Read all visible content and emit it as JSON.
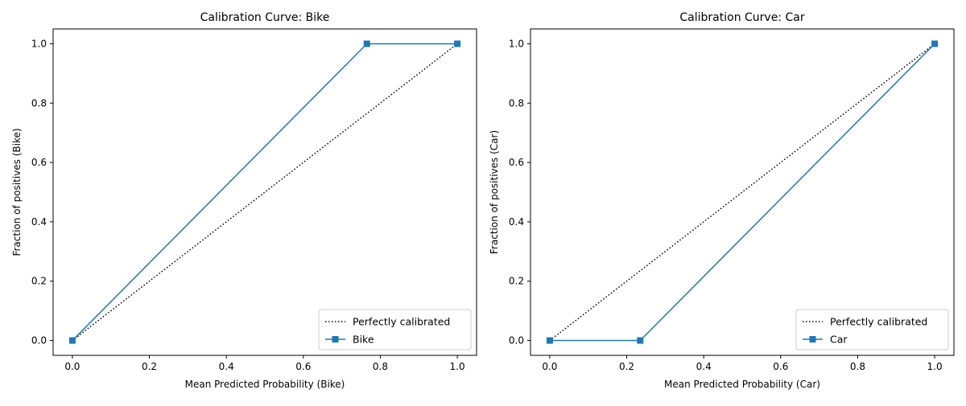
{
  "chart_data": [
    {
      "type": "line",
      "title": "Calibration Curve: Bike",
      "xlabel": "Mean Predicted Probability (Bike)",
      "ylabel": "Fraction of positives (Bike)",
      "xlim": [
        -0.05,
        1.05
      ],
      "ylim": [
        -0.05,
        1.05
      ],
      "xticks": [
        "0.0",
        "0.2",
        "0.4",
        "0.6",
        "0.8",
        "1.0"
      ],
      "yticks": [
        "0.0",
        "0.2",
        "0.4",
        "0.6",
        "0.8",
        "1.0"
      ],
      "legend_position": "lower-right",
      "series": [
        {
          "name": "Perfectly calibrated",
          "style": "dotted",
          "color": "#000000",
          "x": [
            0,
            1
          ],
          "y": [
            0,
            1
          ]
        },
        {
          "name": "Bike",
          "style": "solid-square-markers",
          "color": "#1f77b4",
          "x": [
            0.0,
            0.765,
            1.0
          ],
          "y": [
            0.0,
            1.0,
            1.0
          ]
        }
      ]
    },
    {
      "type": "line",
      "title": "Calibration Curve: Car",
      "xlabel": "Mean Predicted Probability (Car)",
      "ylabel": "Fraction of positives (Car)",
      "xlim": [
        -0.05,
        1.05
      ],
      "ylim": [
        -0.05,
        1.05
      ],
      "xticks": [
        "0.0",
        "0.2",
        "0.4",
        "0.6",
        "0.8",
        "1.0"
      ],
      "yticks": [
        "0.0",
        "0.2",
        "0.4",
        "0.6",
        "0.8",
        "1.0"
      ],
      "legend_position": "lower-right",
      "series": [
        {
          "name": "Perfectly calibrated",
          "style": "dotted",
          "color": "#000000",
          "x": [
            0,
            1
          ],
          "y": [
            0,
            1
          ]
        },
        {
          "name": "Car",
          "style": "solid-square-markers",
          "color": "#1f77b4",
          "x": [
            0.0,
            0.235,
            1.0
          ],
          "y": [
            0.0,
            0.0,
            1.0
          ]
        }
      ]
    }
  ]
}
